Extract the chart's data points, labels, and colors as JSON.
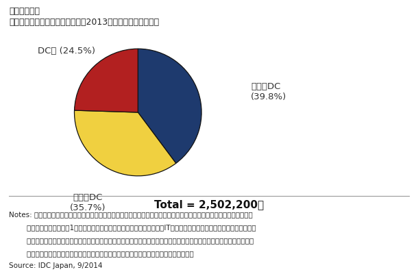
{
  "title_line1": "＜参考資料＞",
  "title_line2": "国内のサーバー設置台数構成比、2013年末時点：設置場所別",
  "slices": [
    39.8,
    35.7,
    24.5
  ],
  "colors": [
    "#1e3a6e",
    "#f0d040",
    "#b22020"
  ],
  "startangle": 90,
  "total_text": "Total = 2,502,200台",
  "label_jigyosha": "事業者DC\n(39.8%)",
  "label_kigyonai": "企業内DC\n(35.7%)",
  "label_dcgai": "DC外 (24.5%)",
  "notes_text": "Notes: 事業者データセンターとは、顧客へのサービス提供のために必要なインフラとして建設されたものを指す。企業内\n        データセンターとは、1つの企業がプライベートに所有し、当該企業のIT部門がサーバーやストレージ、ネットワーク\n        機器などの調達権限を持ってコントロールしているものを指す。また、データセンター外とは、マシンルームなどの独\n        立した部屋ではなく、たとえば、オフィススペースや店舗のバックヤードなどを指す。",
  "source_text": "Source: IDC Japan, 9/2014",
  "background_color": "#ffffff",
  "label_fontsize": 9.5,
  "title1_fontsize": 9,
  "title2_fontsize": 9,
  "total_fontsize": 11,
  "notes_fontsize": 7.5
}
